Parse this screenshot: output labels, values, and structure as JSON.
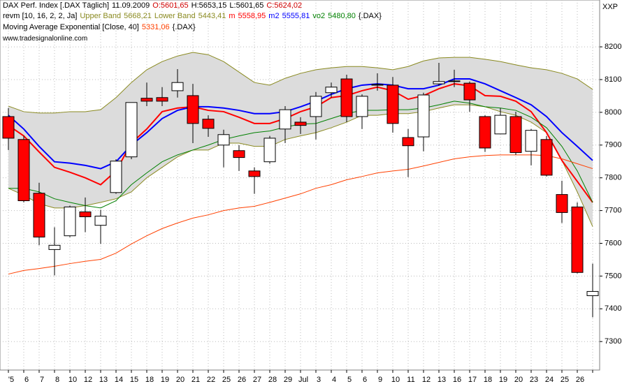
{
  "chart_data": {
    "type": "candlestick",
    "header": {
      "symbol": "DAX Perf. Index [.DAX  Täglich]",
      "date": "11.09.2009",
      "open": "O:5601,65",
      "high": "H:5653,15",
      "low": "L:5601,65",
      "close": "C:5624,02"
    },
    "indicator": "revm [10, 16, 2, 2, Ja]",
    "indicator_source": "{.DAX}",
    "watermark": "www.tradesignalonline.com",
    "corner_label": "XXP",
    "categories": [
      "'5",
      "6",
      "7",
      "8",
      "10",
      "12",
      "13",
      "14",
      "15",
      "18",
      "19",
      "20",
      "21",
      "22",
      "25",
      "26",
      "27",
      "28",
      "29",
      "Jul",
      "3",
      "4",
      "5",
      "6",
      "9",
      "10",
      "11",
      "12",
      "13",
      "16",
      "17",
      "18",
      "19",
      "20",
      "23",
      "24",
      "25",
      "26",
      null
    ],
    "open": [
      7987,
      7917,
      7753,
      7581,
      7623,
      7696,
      7655,
      7755,
      7864,
      8043,
      8045,
      8066,
      8051,
      7979,
      7900,
      7883,
      7821,
      7849,
      7949,
      7970,
      7987,
      8060,
      8102,
      7987,
      8083,
      8083,
      7923,
      7925,
      8087,
      8094,
      8089,
      7987,
      7934,
      7987,
      7881,
      7917,
      7749,
      7711,
      7440
    ],
    "high": [
      8013,
      7928,
      7785,
      7649,
      7715,
      7740,
      7702,
      7857,
      8030,
      8091,
      8077,
      8132,
      8087,
      7991,
      7947,
      7900,
      7832,
      7928,
      8019,
      7985,
      8062,
      8091,
      8115,
      8055,
      8119,
      8108,
      7949,
      8060,
      8151,
      8130,
      8094,
      7991,
      8013,
      8002,
      7949,
      7928,
      7791,
      7725,
      7538
    ],
    "low": [
      7885,
      7725,
      7594,
      7502,
      7619,
      7634,
      7598,
      7751,
      7857,
      8019,
      8019,
      8045,
      7906,
      7925,
      7832,
      7821,
      7751,
      7843,
      7906,
      7934,
      7917,
      8045,
      7970,
      7949,
      8066,
      7938,
      7802,
      7881,
      8081,
      8077,
      8002,
      7879,
      7934,
      7870,
      7838,
      7804,
      7662,
      7508,
      7374
    ],
    "close": [
      7921,
      7730,
      7619,
      7594,
      7711,
      7681,
      7683,
      7851,
      8030,
      8034,
      8034,
      8091,
      7966,
      7951,
      7932,
      7862,
      7804,
      7921,
      8008,
      7960,
      8049,
      8077,
      7987,
      8049,
      8085,
      7966,
      7898,
      8053,
      8094,
      8096,
      8038,
      7891,
      7991,
      7877,
      7945,
      7808,
      7694,
      7511,
      7453
    ],
    "up_color": "#ffffff",
    "down_color": "#ff0000",
    "band_fill": "#dcdcdc",
    "series": [
      {
        "name": "Upper Band",
        "color": "#8a8a20",
        "last": "5668,21",
        "line": 1,
        "values": [
          8019,
          8002,
          7998,
          7998,
          8002,
          8002,
          8008,
          8045,
          8091,
          8130,
          8155,
          8172,
          8183,
          8176,
          8155,
          8123,
          8091,
          8083,
          8104,
          8119,
          8130,
          8136,
          8140,
          8140,
          8136,
          8130,
          8140,
          8157,
          8166,
          8168,
          8168,
          8162,
          8155,
          8145,
          8136,
          8130,
          8119,
          8102,
          8070
        ]
      },
      {
        "name": "Lower Band",
        "color": "#8a8a20",
        "last": "5443,41",
        "line": 1,
        "values": [
          7768,
          7747,
          7721,
          7708,
          7708,
          7715,
          7725,
          7736,
          7757,
          7800,
          7832,
          7864,
          7885,
          7885,
          7906,
          7906,
          7896,
          7896,
          7917,
          7928,
          7938,
          7953,
          7970,
          7991,
          7991,
          7996,
          7996,
          8002,
          8013,
          8023,
          8023,
          8017,
          8002,
          7991,
          7970,
          7938,
          7853,
          7757,
          7651
        ]
      },
      {
        "name": "m",
        "color": "#ff0000",
        "last": "5558,95",
        "line": 1,
        "values": [
          7960,
          7928,
          7879,
          7832,
          7817,
          7800,
          7779,
          7821,
          7906,
          7949,
          8002,
          8013,
          8017,
          8006,
          8002,
          7985,
          7966,
          7966,
          7981,
          8002,
          8017,
          8045,
          8051,
          8066,
          8077,
          8066,
          8040,
          8051,
          8072,
          8087,
          8081,
          8051,
          8049,
          8034,
          8002,
          7938,
          7853,
          7789,
          7725
        ]
      },
      {
        "name": "m2",
        "color": "#0000ff",
        "last": "5555,81",
        "line": 1,
        "values": [
          7991,
          7949,
          7896,
          7849,
          7845,
          7838,
          7828,
          7849,
          7900,
          7938,
          7981,
          8006,
          8017,
          8017,
          8013,
          8006,
          7996,
          7996,
          8002,
          8017,
          8034,
          8055,
          8072,
          8083,
          8087,
          8083,
          8072,
          8072,
          8083,
          8102,
          8102,
          8087,
          8066,
          8045,
          8023,
          7987,
          7938,
          7896,
          7853
        ]
      },
      {
        "name": "vo2",
        "color": "#008000",
        "last": "5480,80",
        "line": 1,
        "values": [
          7768,
          7768,
          7757,
          7736,
          7725,
          7715,
          7708,
          7730,
          7779,
          7815,
          7849,
          7870,
          7885,
          7900,
          7917,
          7928,
          7938,
          7943,
          7955,
          7964,
          7966,
          7981,
          7996,
          8006,
          8006,
          8008,
          8008,
          8013,
          8023,
          8034,
          8028,
          8017,
          8013,
          8006,
          7985,
          7953,
          7896,
          7821,
          7725
        ]
      },
      {
        "name": "Moving Average Exponential [Close, 40]",
        "color": "#ff4000",
        "last": "5331,06",
        "line": 2,
        "values": [
          7506,
          7517,
          7523,
          7530,
          7538,
          7545,
          7551,
          7570,
          7598,
          7623,
          7645,
          7662,
          7677,
          7687,
          7700,
          7708,
          7713,
          7725,
          7738,
          7751,
          7768,
          7779,
          7794,
          7804,
          7815,
          7821,
          7826,
          7836,
          7847,
          7858,
          7864,
          7868,
          7870,
          7870,
          7870,
          7868,
          7858,
          7843,
          7828
        ]
      }
    ],
    "ylim": [
      7213,
      8343
    ],
    "yticks": [
      7300,
      7400,
      7500,
      7600,
      7700,
      7800,
      7900,
      8000,
      8100,
      8200
    ],
    "grid": true
  }
}
